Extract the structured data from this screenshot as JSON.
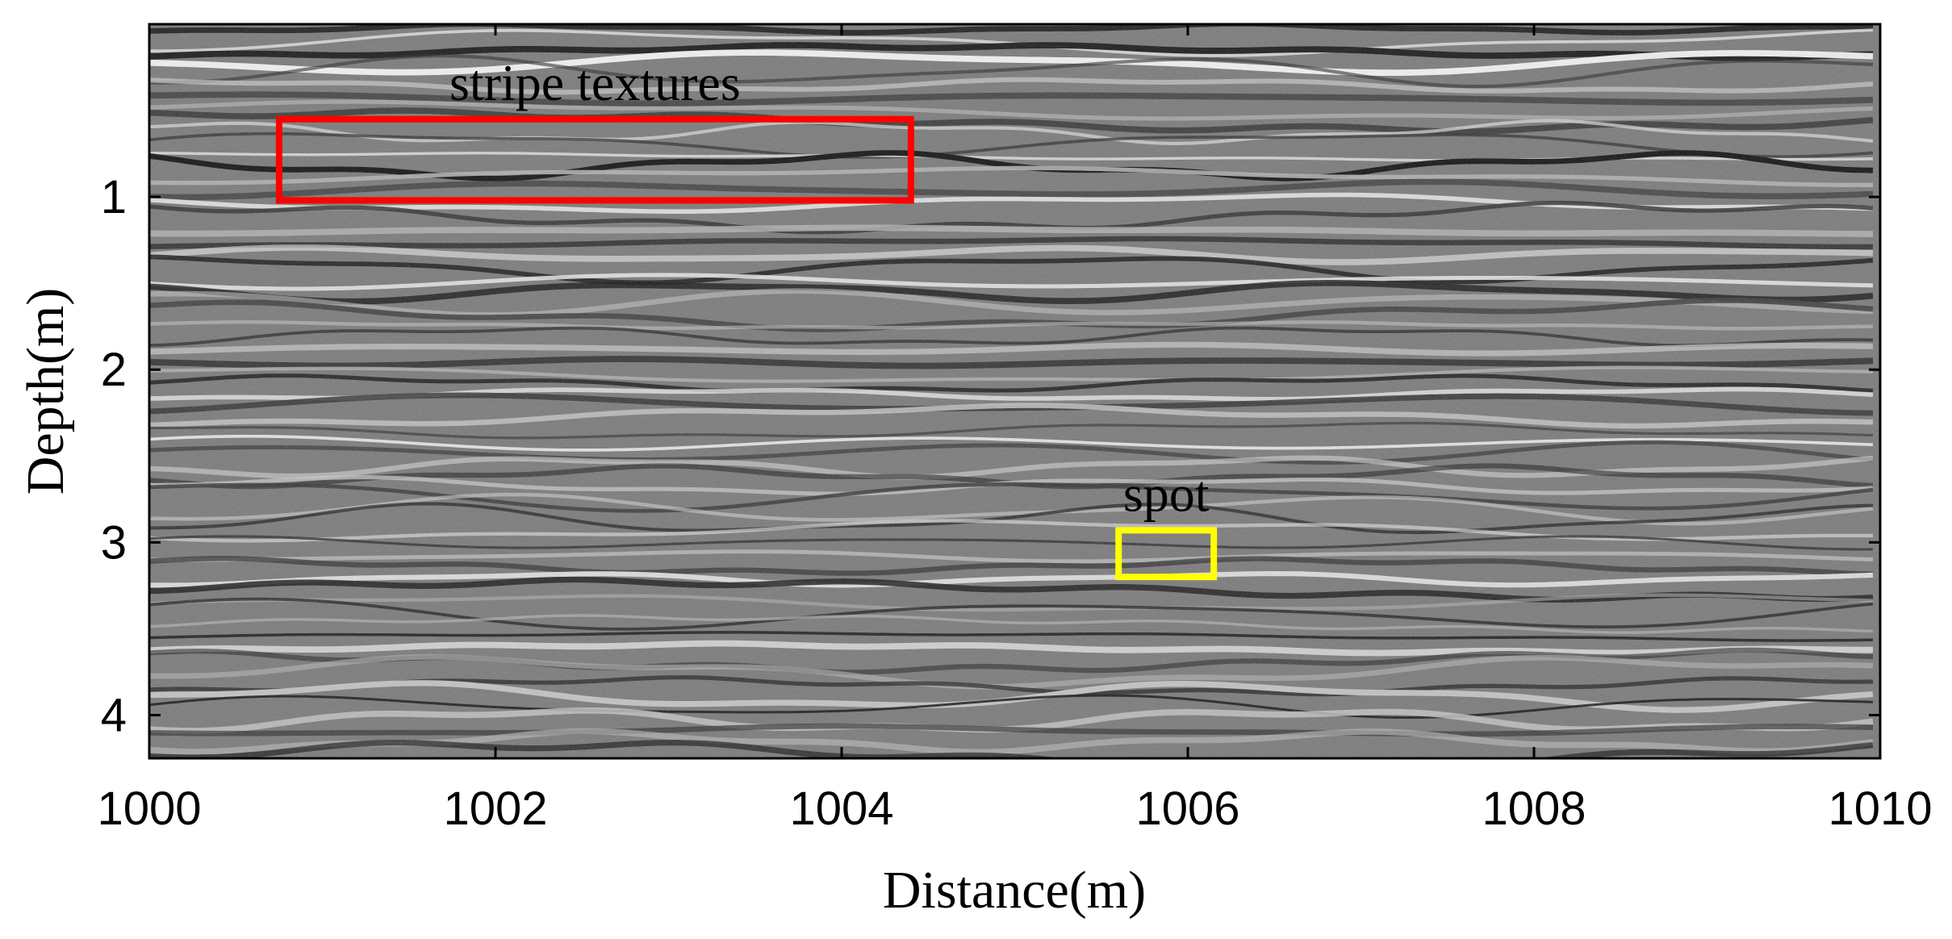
{
  "chart_data": {
    "type": "heatmap",
    "title": "",
    "xlabel": "Distance(m)",
    "ylabel": "Depth(m)",
    "xlim": [
      1000,
      1010
    ],
    "ylim": [
      4.25,
      0
    ],
    "x_ticks": [
      1000,
      1002,
      1004,
      1006,
      1008,
      1010
    ],
    "y_ticks": [
      1,
      2,
      3,
      4
    ],
    "colormap": "grayscale",
    "grid": false,
    "annotations": [
      {
        "label": "stripe textures",
        "color": "#ff0000",
        "x_range": [
          1000.75,
          1004.4
        ],
        "y_range": [
          0.55,
          1.02
        ]
      },
      {
        "label": "spot",
        "color": "#ffff00",
        "x_range": [
          1005.6,
          1006.15
        ],
        "y_range": [
          2.93,
          3.2
        ]
      }
    ]
  }
}
